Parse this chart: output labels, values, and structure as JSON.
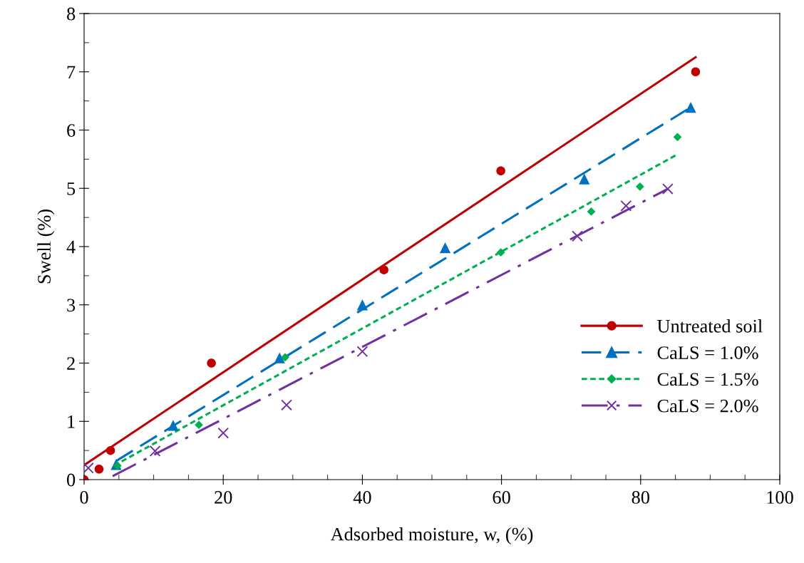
{
  "chart_data": {
    "type": "scatter",
    "xlabel": "Adsorbed moisture, w, (%)",
    "ylabel": "Swell (%)",
    "xlim": [
      0,
      100
    ],
    "ylim": [
      0,
      8
    ],
    "xticks": [
      0,
      20,
      40,
      60,
      80,
      100
    ],
    "yticks": [
      0,
      1,
      2,
      3,
      4,
      5,
      6,
      7,
      8
    ],
    "grid": false,
    "legend": "bottom right",
    "series": [
      {
        "name": "Untreated soil",
        "marker": "circle",
        "color": "#c00000",
        "x": [
          0,
          2.15,
          3.8,
          18.3,
          43.1,
          59.9,
          87.9
        ],
        "values": [
          0,
          0.18,
          0.5,
          2.0,
          3.6,
          5.3,
          7.0
        ]
      },
      {
        "name": "CaLS = 1.0%",
        "marker": "triangle",
        "color": "#0070c0",
        "x": [
          4.6,
          12.8,
          28.1,
          40,
          51.9,
          71.9,
          87.2
        ],
        "values": [
          0.26,
          0.93,
          2.09,
          3.0,
          3.98,
          5.16,
          6.39
        ]
      },
      {
        "name": "CaLS = 1.5%",
        "marker": "diamond",
        "color": "#00b050",
        "x": [
          4.8,
          16.5,
          28.9,
          59.9,
          72.9,
          79.9,
          85.3
        ],
        "values": [
          0.24,
          0.94,
          2.1,
          3.9,
          4.6,
          5.03,
          5.88
        ]
      },
      {
        "name": "CaLS = 2.0%",
        "marker": "cross",
        "color": "#7030a0",
        "x": [
          0.6,
          10.2,
          20,
          29.1,
          40,
          70.9,
          77.9,
          83.9
        ],
        "values": [
          0.2,
          0.49,
          0.8,
          1.28,
          2.2,
          4.18,
          4.7,
          4.99
        ]
      },
      {
        "type": "line",
        "line_style": "solid",
        "color": "#c00000",
        "x": [
          0,
          87.9
        ],
        "values": [
          0.25,
          7.25
        ]
      },
      {
        "type": "line",
        "line_style": "dashed",
        "color": "#0070c0",
        "x": [
          4.6,
          87.2
        ],
        "values": [
          0.32,
          6.39
        ]
      },
      {
        "type": "line",
        "line_style": "dotted",
        "color": "#00b050",
        "x": [
          4.3,
          85.4
        ],
        "values": [
          0.24,
          5.59
        ]
      },
      {
        "type": "line",
        "line_style": "dashdot",
        "color": "#7030a0",
        "x": [
          4.1,
          83.9
        ],
        "values": [
          0.06,
          4.99
        ]
      }
    ]
  }
}
